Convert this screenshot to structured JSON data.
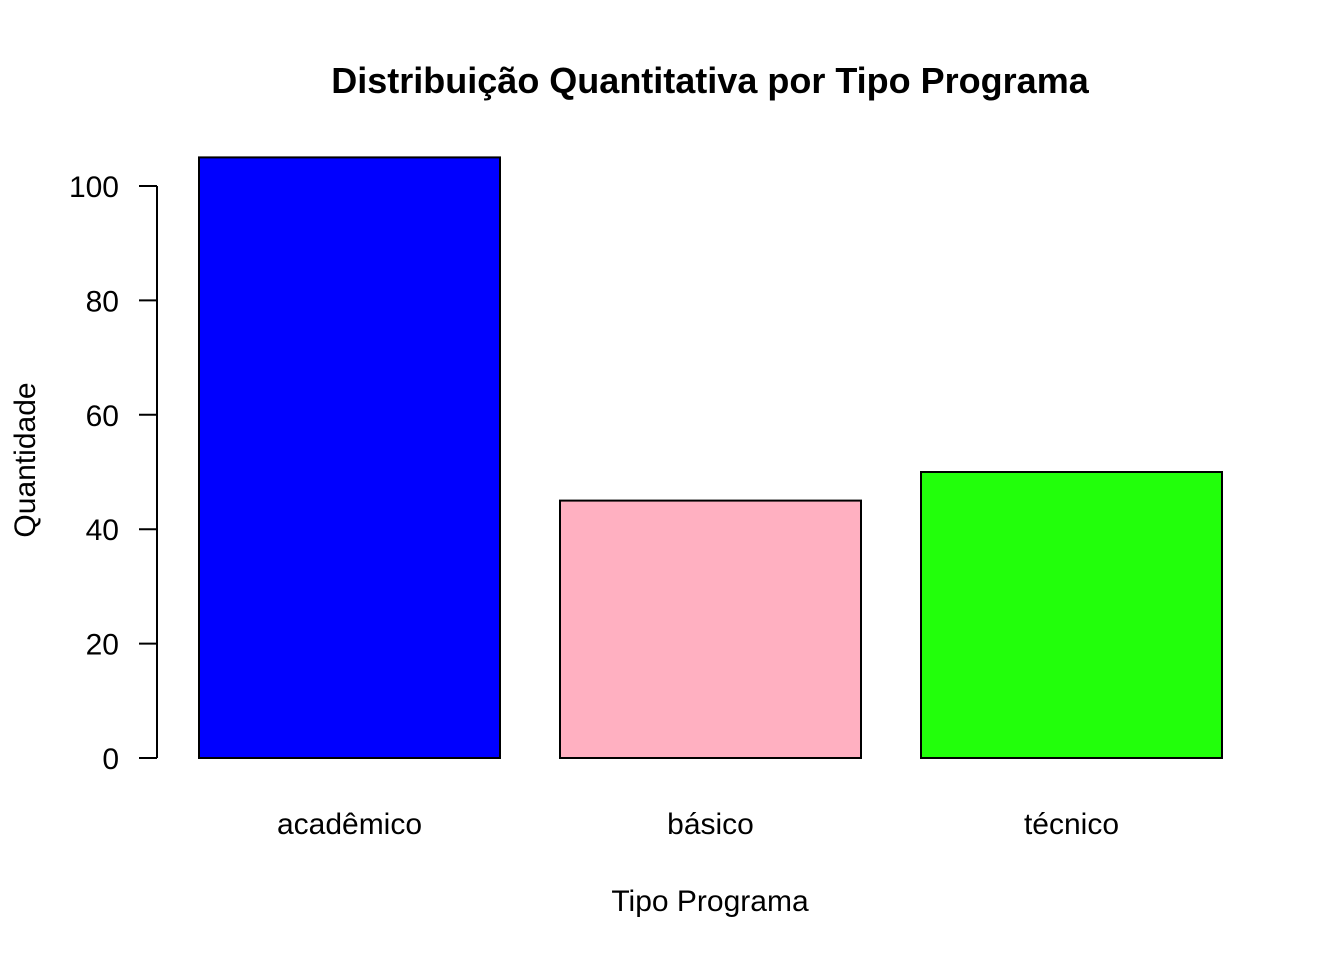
{
  "chart_data": {
    "type": "bar",
    "title": "Distribuição Quantitativa por Tipo Programa",
    "xlabel": "Tipo Programa",
    "ylabel": "Quantidade",
    "categories": [
      "acadêmico",
      "básico",
      "técnico"
    ],
    "values": [
      105,
      45,
      50
    ],
    "colors": [
      "#0000ff",
      "#ffb0c1",
      "#22ff0b"
    ],
    "ylim": [
      0,
      105
    ],
    "yticks": [
      0,
      20,
      40,
      60,
      80,
      100
    ],
    "grid": false,
    "legend": "none"
  }
}
